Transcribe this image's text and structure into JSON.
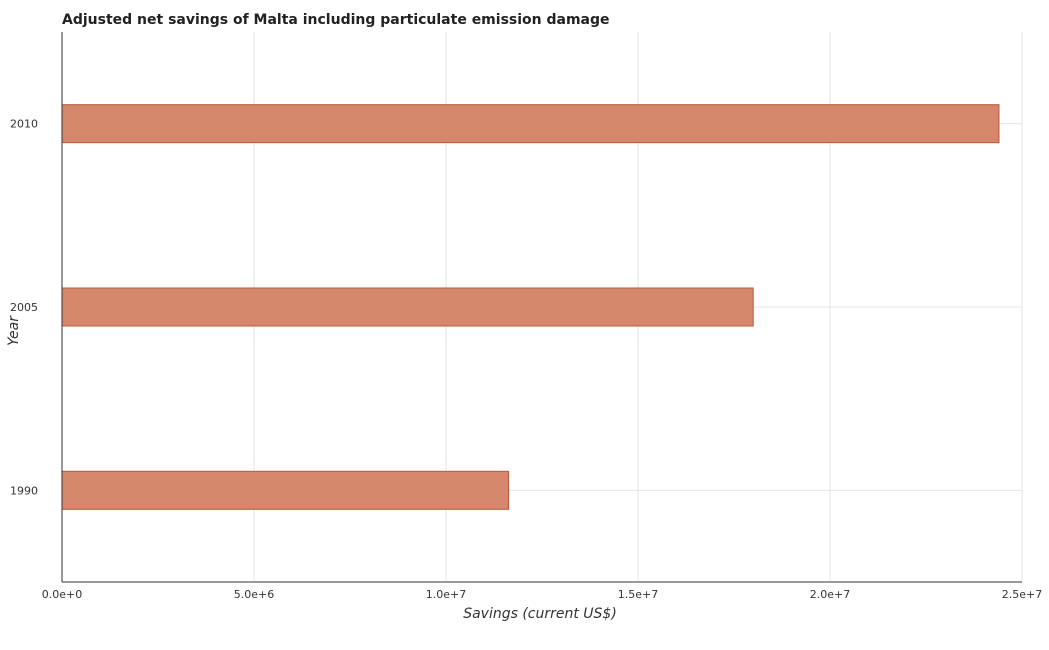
{
  "chart_data": {
    "type": "bar",
    "orientation": "horizontal",
    "title": "Adjusted net savings of Malta including particulate emission damage",
    "xlabel": "Savings (current US$)",
    "ylabel": "Year",
    "categories": [
      "1990",
      "2005",
      "2010"
    ],
    "values": [
      11630000,
      18000000,
      24400000
    ],
    "xlim": [
      0,
      25000000
    ],
    "x_ticks": [
      0,
      5000000,
      10000000,
      15000000,
      20000000,
      25000000
    ],
    "x_tick_labels": [
      "0.0e+0",
      "5.0e+6",
      "1.0e+7",
      "1.5e+7",
      "2.0e+7",
      "2.5e+7"
    ],
    "bar_color": "#d4876a",
    "bar_edge_color": "#b85a3a",
    "grid": true
  }
}
